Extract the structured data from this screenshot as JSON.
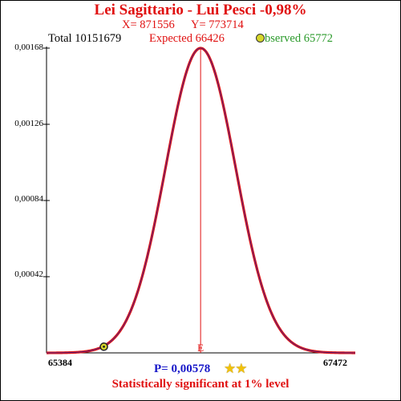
{
  "header": {
    "title": "Lei Sagittario - Lui Pesci  -0,98%",
    "x_label": "X= 871556",
    "y_label": "Y= 773714",
    "total_label": "Total  10151679",
    "expected_label": "Expected  66426",
    "observed_label": "bserved  65772"
  },
  "footer": {
    "p_value": "P= 0,00578",
    "stars": "★★",
    "verdict": "Statistically significant at 1% level"
  },
  "colors": {
    "curve": "#dd1111",
    "curve_inner": "#3b2a9a",
    "expected_line": "#e01010",
    "observed_marker": "#d6d62a"
  },
  "chart_data": {
    "type": "line",
    "title": "Lei Sagittario - Lui Pesci  -0,98%",
    "xlabel": "",
    "ylabel": "",
    "xlim": [
      65384,
      67472
    ],
    "ylim": [
      0,
      0.00168
    ],
    "y_ticks": [
      "0,00168",
      "0,00126",
      "0,00084",
      "0,00042"
    ],
    "y_tick_values": [
      0.00168,
      0.00126,
      0.00084,
      0.00042
    ],
    "x_tick_labels": [
      "65384",
      "67472"
    ],
    "distribution": {
      "mean": 66426,
      "sd": 237.5,
      "peak": 0.00168
    },
    "expected": {
      "label": "E",
      "x": 66426
    },
    "observed": {
      "x": 65772,
      "y": 3.4e-05
    },
    "p_value": 0.00578,
    "grid": false
  }
}
